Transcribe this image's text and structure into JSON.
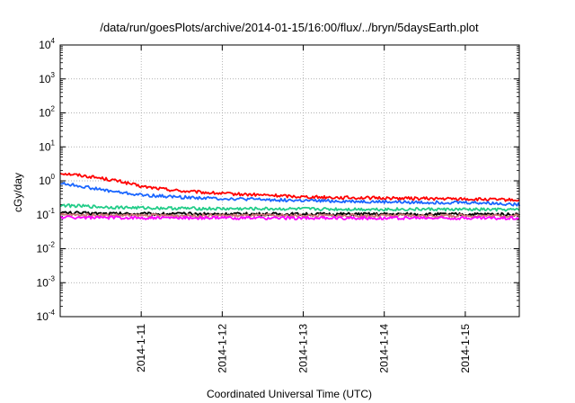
{
  "chart_data": {
    "type": "line",
    "title": "/data/run/goesPlots/archive/2014-01-15/16:00/flux/../bryn/5daysEarth.plot",
    "xlabel": "Coordinated Universal Time (UTC)",
    "ylabel": "cGy/day",
    "yscale": "log",
    "ylim": [
      0.0001,
      10000
    ],
    "y_ticks": [
      {
        "base": "10",
        "exp": "-4",
        "value": 0.0001
      },
      {
        "base": "10",
        "exp": "-3",
        "value": 0.001
      },
      {
        "base": "10",
        "exp": "-2",
        "value": 0.01
      },
      {
        "base": "10",
        "exp": "-1",
        "value": 0.1
      },
      {
        "base": "10",
        "exp": "0",
        "value": 1
      },
      {
        "base": "10",
        "exp": "1",
        "value": 10
      },
      {
        "base": "10",
        "exp": "2",
        "value": 100
      },
      {
        "base": "10",
        "exp": "3",
        "value": 1000
      },
      {
        "base": "10",
        "exp": "4",
        "value": 10000
      }
    ],
    "xlim": [
      "2014-01-10 00:00",
      "2014-01-15 16:00"
    ],
    "x_ticks": [
      {
        "label": "2014-1-11",
        "value": "2014-01-11"
      },
      {
        "label": "2014-1-12",
        "value": "2014-01-12"
      },
      {
        "label": "2014-1-13",
        "value": "2014-01-13"
      },
      {
        "label": "2014-1-14",
        "value": "2014-01-14"
      },
      {
        "label": "2014-1-15",
        "value": "2014-01-15"
      }
    ],
    "grid": true,
    "x_days": [
      0,
      0.25,
      0.5,
      0.75,
      1,
      1.5,
      2,
      2.5,
      3,
      3.5,
      4,
      4.5,
      5,
      5.3,
      5.67
    ],
    "series": [
      {
        "color": "#ff0000",
        "values": [
          1.7,
          1.45,
          1.2,
          0.95,
          0.68,
          0.5,
          0.42,
          0.38,
          0.34,
          0.32,
          0.31,
          0.3,
          0.29,
          0.28,
          0.27
        ]
      },
      {
        "color": "#1a66ff",
        "values": [
          0.85,
          0.7,
          0.55,
          0.45,
          0.38,
          0.33,
          0.3,
          0.28,
          0.26,
          0.25,
          0.24,
          0.23,
          0.23,
          0.22,
          0.2
        ]
      },
      {
        "color": "#22cc88",
        "values": [
          0.19,
          0.18,
          0.17,
          0.165,
          0.16,
          0.155,
          0.15,
          0.15,
          0.148,
          0.146,
          0.145,
          0.145,
          0.143,
          0.142,
          0.14
        ]
      },
      {
        "color": "#000000",
        "values": [
          0.115,
          0.112,
          0.11,
          0.108,
          0.107,
          0.106,
          0.105,
          0.105,
          0.104,
          0.104,
          0.104,
          0.103,
          0.103,
          0.103,
          0.102
        ]
      },
      {
        "color": "#cc7777",
        "values": [
          0.1,
          0.098,
          0.097,
          0.096,
          0.096,
          0.095,
          0.095,
          0.095,
          0.095,
          0.094,
          0.094,
          0.094,
          0.094,
          0.094,
          0.094
        ]
      },
      {
        "color": "#ff00ff",
        "values": [
          0.085,
          0.083,
          0.082,
          0.082,
          0.081,
          0.081,
          0.081,
          0.08,
          0.08,
          0.08,
          0.08,
          0.08,
          0.08,
          0.08,
          0.08
        ]
      }
    ]
  }
}
